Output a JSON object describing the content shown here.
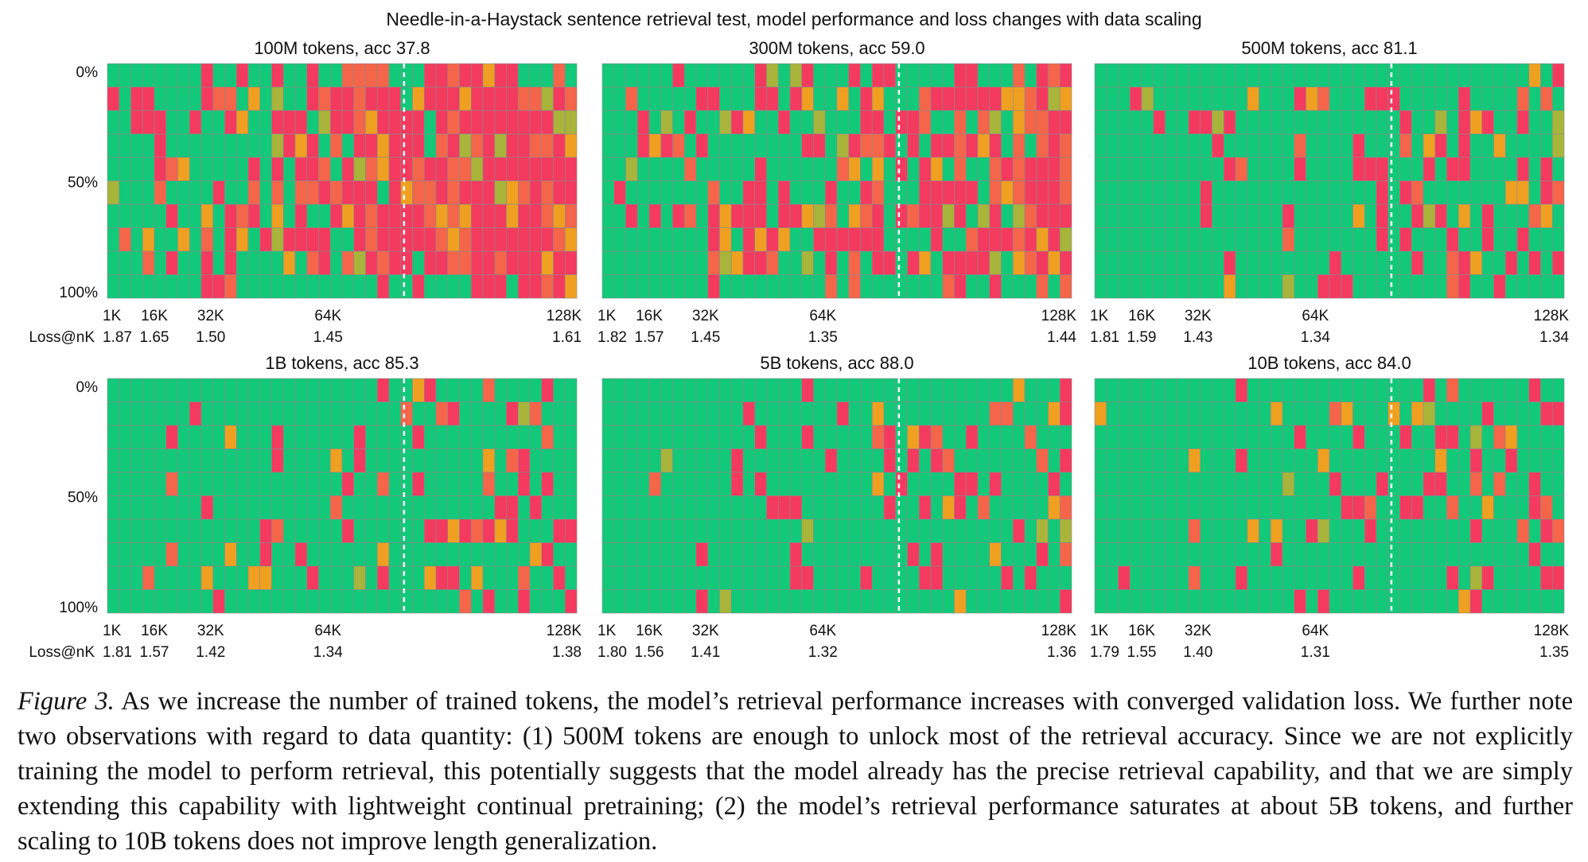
{
  "figure_title": "Needle-in-a-Haystack sentence retrieval test, model performance and loss changes with data scaling",
  "y_tick_labels": [
    "0%",
    "50%",
    "100%"
  ],
  "loss_row_label": "Loss@nK",
  "x_tick_labels": [
    "1K",
    "16K",
    "32K",
    "64K",
    "128K"
  ],
  "colors": {
    "pass": "#12c979",
    "fail": "#f43a5f",
    "fail_orange": "#f4654a",
    "partial_orange": "#f0a020",
    "partial_olive": "#a8b43a",
    "grid_line": "#8a8a8a",
    "divider": "#ffffff"
  },
  "chart_data": [
    {
      "type": "heatmap",
      "title": "100M tokens, acc 37.8",
      "acc": 37.8,
      "tokens": "100M",
      "rows": 10,
      "cols": 40,
      "loss": [
        "1.87",
        "1.65",
        "1.50",
        "1.45",
        "1.61"
      ]
    },
    {
      "type": "heatmap",
      "title": "300M tokens, acc 59.0",
      "acc": 59.0,
      "tokens": "300M",
      "rows": 10,
      "cols": 40,
      "loss": [
        "1.82",
        "1.57",
        "1.45",
        "1.35",
        "1.44"
      ]
    },
    {
      "type": "heatmap",
      "title": "500M tokens, acc 81.1",
      "acc": 81.1,
      "tokens": "500M",
      "rows": 10,
      "cols": 40,
      "loss": [
        "1.81",
        "1.59",
        "1.43",
        "1.34",
        "1.34"
      ]
    },
    {
      "type": "heatmap",
      "title": "1B tokens, acc 85.3",
      "acc": 85.3,
      "tokens": "1B",
      "rows": 10,
      "cols": 40,
      "loss": [
        "1.81",
        "1.57",
        "1.42",
        "1.34",
        "1.38"
      ]
    },
    {
      "type": "heatmap",
      "title": "5B tokens, acc 88.0",
      "acc": 88.0,
      "tokens": "5B",
      "rows": 10,
      "cols": 40,
      "loss": [
        "1.80",
        "1.56",
        "1.41",
        "1.32",
        "1.36"
      ]
    },
    {
      "type": "heatmap",
      "title": "10B tokens, acc 84.0",
      "acc": 84.0,
      "tokens": "10B",
      "rows": 10,
      "cols": 40,
      "loss": [
        "1.79",
        "1.55",
        "1.40",
        "1.31",
        "1.35"
      ]
    }
  ],
  "caption": {
    "label": "Figure 3.",
    "text": "As we increase the number of trained tokens, the model’s retrieval performance increases with converged validation loss. We further note two observations with regard to data quantity: (1) 500M tokens are enough to unlock most of the retrieval accuracy. Since we are not explicitly training the model to perform retrieval, this potentially suggests that the model already has the precise retrieval capability, and that we are simply extending this capability with lightweight continual pretraining; (2) the model’s retrieval performance saturates at about 5B tokens, and further scaling to 10B tokens does not improve length generalization."
  }
}
